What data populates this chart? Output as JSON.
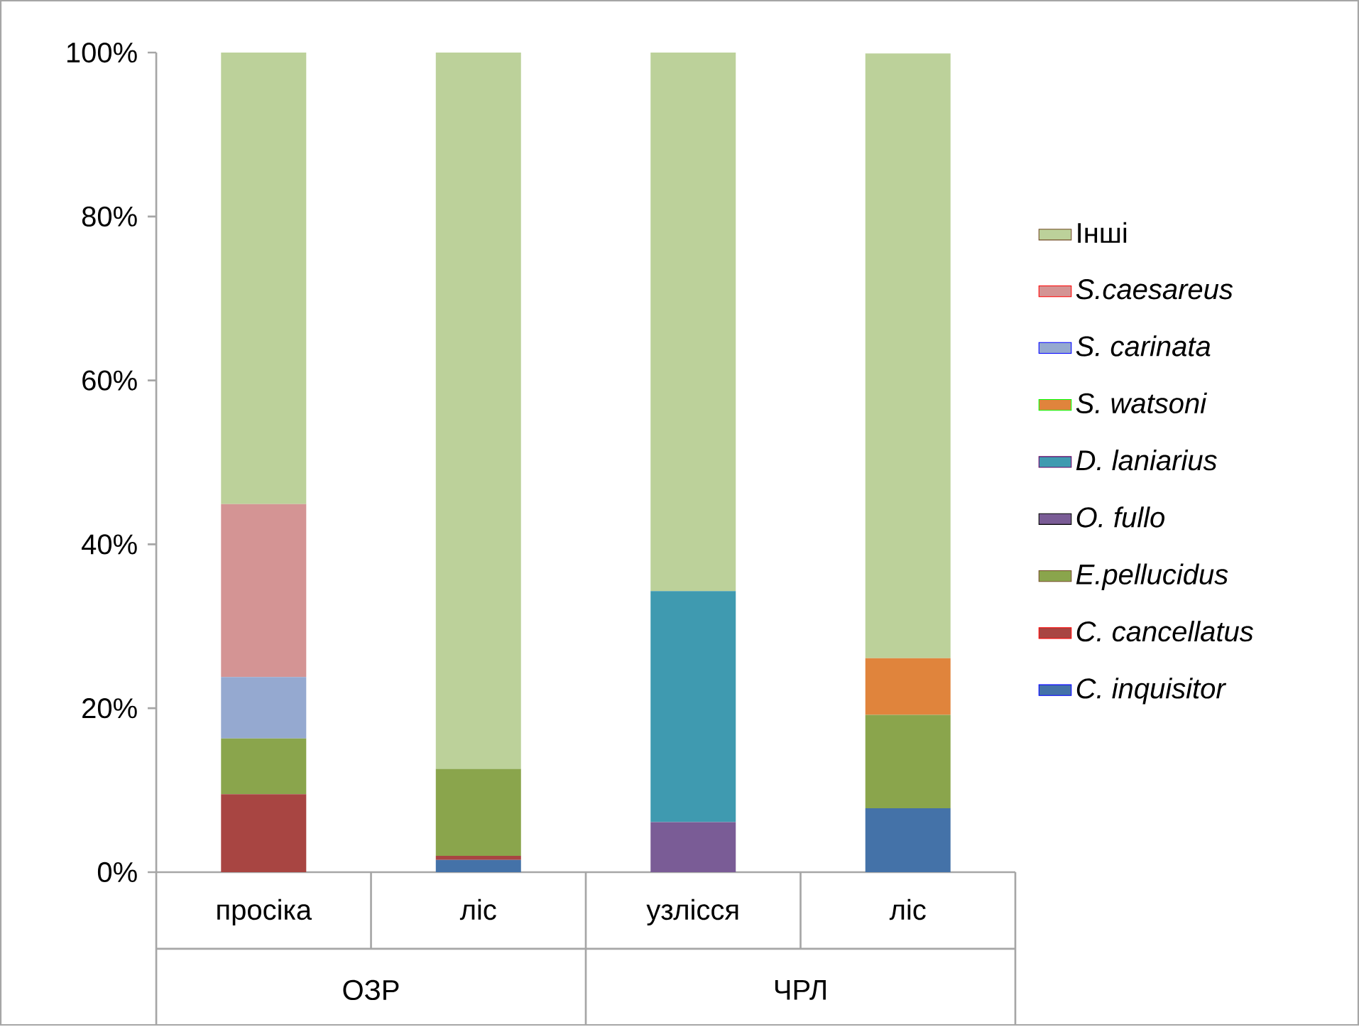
{
  "chart_data": {
    "type": "bar",
    "stacked": true,
    "legend": "right",
    "categories": [
      "просіка",
      "ліс",
      "узлісся",
      "ліс"
    ],
    "annotations": [
      "ОЗР",
      "ЧРЛ"
    ],
    "ylim": [
      0,
      100
    ],
    "yticks": [
      {
        "value": 0,
        "label": "0%"
      },
      {
        "value": 20,
        "label": "20%"
      },
      {
        "value": 40,
        "label": "40%"
      },
      {
        "value": 60,
        "label": "60%"
      },
      {
        "value": 80,
        "label": "80%"
      },
      {
        "value": 100,
        "label": "100%"
      }
    ],
    "series": [
      {
        "name": "*C. inquisitor*",
        "color": "#4472a8",
        "values": [
          0,
          1.5,
          0,
          7.8
        ]
      },
      {
        "name": "*C. cancellatus*",
        "color": "#a84542",
        "values": [
          9.5,
          0.5,
          0,
          0
        ]
      },
      {
        "name": "*E.pellucidus*",
        "color": "#8aa54c",
        "values": [
          6.8,
          10.6,
          0,
          11.4
        ]
      },
      {
        "name": "*O. fullo*",
        "color": "#7a5c96",
        "values": [
          0,
          0,
          6.1,
          0
        ]
      },
      {
        "name": "*D. laniarius*",
        "color": "#3f9ab0",
        "values": [
          0,
          0,
          28.2,
          0
        ]
      },
      {
        "name": "*S. watsoni*",
        "color": "#e0843c",
        "values": [
          0,
          0,
          0,
          6.9
        ]
      },
      {
        "name": "*S. carinata*",
        "color": "#95a9d0",
        "values": [
          7.5,
          0,
          0,
          0
        ]
      },
      {
        "name": "*S.caesareus*",
        "color": "#d49494",
        "values": [
          21.1,
          0,
          0,
          0
        ]
      },
      {
        "name": "Інші",
        "color": "#bcd19a",
        "values": [
          55.1,
          87.4,
          65.7,
          73.8
        ]
      }
    ]
  }
}
